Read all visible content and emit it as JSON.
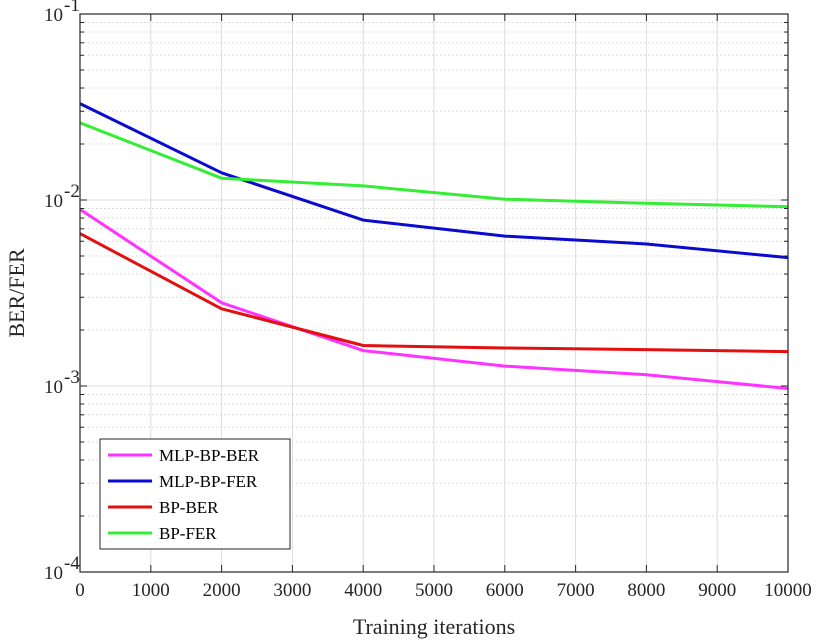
{
  "chart_data": {
    "type": "line",
    "xlabel": "Training iterations",
    "ylabel": "BER/FER",
    "xlim": [
      0,
      10000
    ],
    "ylim": [
      0.0001,
      0.1
    ],
    "yscale": "log",
    "grid": true,
    "legend_position": "bottom-left",
    "x_ticks": [
      "0",
      "1000",
      "2000",
      "3000",
      "4000",
      "5000",
      "6000",
      "7000",
      "8000",
      "9000",
      "10000"
    ],
    "y_ticks": [
      {
        "base": "10",
        "exp": "-4"
      },
      {
        "base": "10",
        "exp": "-3"
      },
      {
        "base": "10",
        "exp": "-2"
      },
      {
        "base": "10",
        "exp": "-1"
      }
    ],
    "x": [
      0,
      2000,
      4000,
      6000,
      8000,
      10000
    ],
    "series": [
      {
        "name": "MLP-BP-BER",
        "color": "#ff33ff",
        "values": [
          0.0089,
          0.0028,
          0.00155,
          0.00128,
          0.00115,
          0.00097
        ]
      },
      {
        "name": "MLP-BP-FER",
        "color": "#0a0ad0",
        "values": [
          0.033,
          0.014,
          0.0078,
          0.0064,
          0.0058,
          0.0049
        ]
      },
      {
        "name": "BP-BER",
        "color": "#e31010",
        "values": [
          0.0066,
          0.0026,
          0.00165,
          0.0016,
          0.00157,
          0.00153
        ]
      },
      {
        "name": "BP-FER",
        "color": "#33ee33",
        "values": [
          0.026,
          0.0131,
          0.0119,
          0.0101,
          0.0096,
          0.0092
        ]
      }
    ]
  }
}
